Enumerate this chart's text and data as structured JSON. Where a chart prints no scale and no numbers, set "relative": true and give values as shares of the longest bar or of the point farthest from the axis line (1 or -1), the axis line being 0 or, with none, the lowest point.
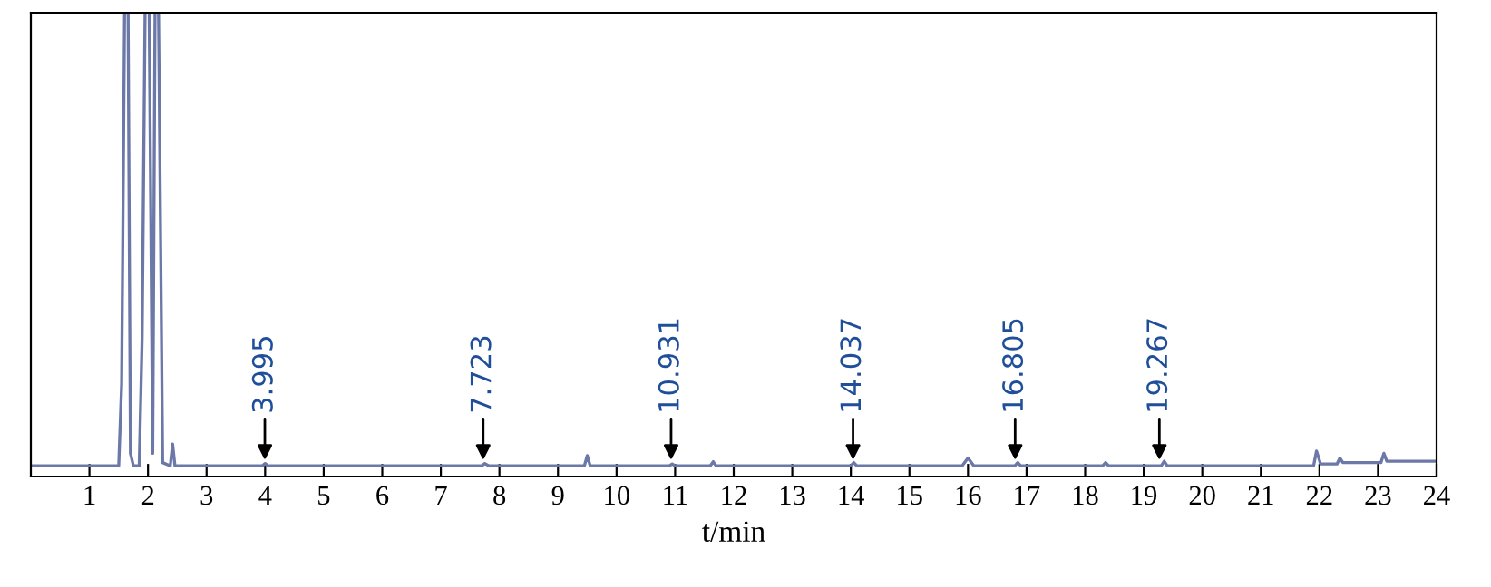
{
  "chart_data": {
    "type": "line",
    "relative": true,
    "xlabel": "t/min",
    "xlim": [
      0,
      24
    ],
    "xticks": [
      1,
      2,
      3,
      4,
      5,
      6,
      7,
      8,
      9,
      10,
      11,
      12,
      13,
      14,
      15,
      16,
      17,
      18,
      19,
      20,
      21,
      22,
      23,
      24
    ],
    "grid": false,
    "legend": false,
    "marker": "none",
    "line_style": "solid",
    "series": [
      {
        "color": "#6b78a8",
        "x": [
          0,
          1.5,
          1.55,
          1.6,
          1.66,
          1.7,
          1.75,
          1.85,
          1.9,
          1.95,
          2.02,
          2.08,
          2.12,
          2.18,
          2.25,
          2.38,
          2.42,
          2.46,
          2.6,
          3.95,
          4.0,
          4.05,
          5,
          7.7,
          7.75,
          7.82,
          8.5,
          9.45,
          9.5,
          9.55,
          10,
          10.9,
          10.95,
          11.0,
          11.6,
          11.65,
          11.7,
          13,
          14.0,
          14.05,
          14.1,
          15.9,
          16.0,
          16.1,
          16.8,
          16.85,
          16.9,
          18.3,
          18.35,
          18.4,
          19.3,
          19.35,
          19.4,
          21,
          21.9,
          21.95,
          22.02,
          22.3,
          22.35,
          22.4,
          22.6,
          23.05,
          23.1,
          23.15,
          24
        ],
        "values": [
          0.023,
          0.023,
          0.2,
          1,
          1,
          0.05,
          0.023,
          0.023,
          0.3,
          1,
          1,
          0.05,
          1,
          1,
          0.03,
          0.023,
          0.07,
          0.023,
          0.023,
          0.023,
          0.028,
          0.023,
          0.023,
          0.023,
          0.028,
          0.023,
          0.023,
          0.023,
          0.045,
          0.023,
          0.023,
          0.023,
          0.027,
          0.023,
          0.023,
          0.032,
          0.023,
          0.023,
          0.023,
          0.03,
          0.023,
          0.023,
          0.04,
          0.023,
          0.023,
          0.03,
          0.023,
          0.023,
          0.03,
          0.023,
          0.023,
          0.033,
          0.023,
          0.023,
          0.023,
          0.055,
          0.027,
          0.027,
          0.04,
          0.03,
          0.03,
          0.03,
          0.05,
          0.033,
          0.033
        ]
      }
    ],
    "annotations": [
      {
        "text": "3.995",
        "x": 3.995,
        "y": 0.035
      },
      {
        "text": "7.723",
        "x": 7.723,
        "y": 0.035
      },
      {
        "text": "10.931",
        "x": 10.931,
        "y": 0.035
      },
      {
        "text": "14.037",
        "x": 14.037,
        "y": 0.035
      },
      {
        "text": "16.805",
        "x": 16.805,
        "y": 0.035
      },
      {
        "text": "19.267",
        "x": 19.267,
        "y": 0.035
      }
    ]
  }
}
